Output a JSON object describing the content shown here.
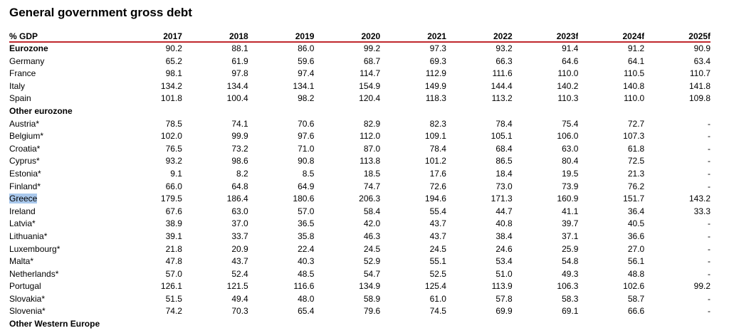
{
  "title": "General government gross debt",
  "header": {
    "label": "% GDP",
    "years": [
      "2017",
      "2018",
      "2019",
      "2020",
      "2021",
      "2022",
      "2023f",
      "2024f",
      "2025f"
    ]
  },
  "rows": [
    {
      "label": "Eurozone",
      "kind": "group",
      "values": [
        "90.2",
        "88.1",
        "86.0",
        "99.2",
        "97.3",
        "93.2",
        "91.4",
        "91.2",
        "90.9"
      ]
    },
    {
      "label": "Germany",
      "kind": "data",
      "values": [
        "65.2",
        "61.9",
        "59.6",
        "68.7",
        "69.3",
        "66.3",
        "64.6",
        "64.1",
        "63.4"
      ]
    },
    {
      "label": "France",
      "kind": "data",
      "values": [
        "98.1",
        "97.8",
        "97.4",
        "114.7",
        "112.9",
        "111.6",
        "110.0",
        "110.5",
        "110.7"
      ]
    },
    {
      "label": "Italy",
      "kind": "data",
      "values": [
        "134.2",
        "134.4",
        "134.1",
        "154.9",
        "149.9",
        "144.4",
        "140.2",
        "140.8",
        "141.8"
      ]
    },
    {
      "label": "Spain",
      "kind": "data",
      "values": [
        "101.8",
        "100.4",
        "98.2",
        "120.4",
        "118.3",
        "113.2",
        "110.3",
        "110.0",
        "109.8"
      ]
    },
    {
      "label": "Other eurozone",
      "kind": "section",
      "values": [
        "",
        "",
        "",
        "",
        "",
        "",
        "",
        "",
        ""
      ]
    },
    {
      "label": "Austria*",
      "kind": "data",
      "values": [
        "78.5",
        "74.1",
        "70.6",
        "82.9",
        "82.3",
        "78.4",
        "75.4",
        "72.7",
        "-"
      ]
    },
    {
      "label": "Belgium*",
      "kind": "data",
      "values": [
        "102.0",
        "99.9",
        "97.6",
        "112.0",
        "109.1",
        "105.1",
        "106.0",
        "107.3",
        "-"
      ]
    },
    {
      "label": "Croatia*",
      "kind": "data",
      "values": [
        "76.5",
        "73.2",
        "71.0",
        "87.0",
        "78.4",
        "68.4",
        "63.0",
        "61.8",
        "-"
      ]
    },
    {
      "label": "Cyprus*",
      "kind": "data",
      "values": [
        "93.2",
        "98.6",
        "90.8",
        "113.8",
        "101.2",
        "86.5",
        "80.4",
        "72.5",
        "-"
      ]
    },
    {
      "label": "Estonia*",
      "kind": "data",
      "values": [
        "9.1",
        "8.2",
        "8.5",
        "18.5",
        "17.6",
        "18.4",
        "19.5",
        "21.3",
        "-"
      ]
    },
    {
      "label": "Finland*",
      "kind": "data",
      "values": [
        "66.0",
        "64.8",
        "64.9",
        "74.7",
        "72.6",
        "73.0",
        "73.9",
        "76.2",
        "-"
      ]
    },
    {
      "label": "Greece",
      "kind": "data",
      "highlight": true,
      "values": [
        "179.5",
        "186.4",
        "180.6",
        "206.3",
        "194.6",
        "171.3",
        "160.9",
        "151.7",
        "143.2"
      ]
    },
    {
      "label": "Ireland",
      "kind": "data",
      "values": [
        "67.6",
        "63.0",
        "57.0",
        "58.4",
        "55.4",
        "44.7",
        "41.1",
        "36.4",
        "33.3"
      ]
    },
    {
      "label": "Latvia*",
      "kind": "data",
      "values": [
        "38.9",
        "37.0",
        "36.5",
        "42.0",
        "43.7",
        "40.8",
        "39.7",
        "40.5",
        "-"
      ]
    },
    {
      "label": "Lithuania*",
      "kind": "data",
      "values": [
        "39.1",
        "33.7",
        "35.8",
        "46.3",
        "43.7",
        "38.4",
        "37.1",
        "36.6",
        "-"
      ]
    },
    {
      "label": "Luxembourg*",
      "kind": "data",
      "values": [
        "21.8",
        "20.9",
        "22.4",
        "24.5",
        "24.5",
        "24.6",
        "25.9",
        "27.0",
        "-"
      ]
    },
    {
      "label": "Malta*",
      "kind": "data",
      "values": [
        "47.8",
        "43.7",
        "40.3",
        "52.9",
        "55.1",
        "53.4",
        "54.8",
        "56.1",
        "-"
      ]
    },
    {
      "label": "Netherlands*",
      "kind": "data",
      "values": [
        "57.0",
        "52.4",
        "48.5",
        "54.7",
        "52.5",
        "51.0",
        "49.3",
        "48.8",
        "-"
      ]
    },
    {
      "label": "Portugal",
      "kind": "data",
      "values": [
        "126.1",
        "121.5",
        "116.6",
        "134.9",
        "125.4",
        "113.9",
        "106.3",
        "102.6",
        "99.2"
      ]
    },
    {
      "label": "Slovakia*",
      "kind": "data",
      "values": [
        "51.5",
        "49.4",
        "48.0",
        "58.9",
        "61.0",
        "57.8",
        "58.3",
        "58.7",
        "-"
      ]
    },
    {
      "label": "Slovenia*",
      "kind": "data",
      "values": [
        "74.2",
        "70.3",
        "65.4",
        "79.6",
        "74.5",
        "69.9",
        "69.1",
        "66.6",
        "-"
      ]
    },
    {
      "label": "Other Western Europe",
      "kind": "section",
      "values": [
        "",
        "",
        "",
        "",
        "",
        "",
        "",
        "",
        ""
      ]
    }
  ],
  "colors": {
    "header_rule": "#c0282d",
    "highlight": "#a9c8ec"
  }
}
